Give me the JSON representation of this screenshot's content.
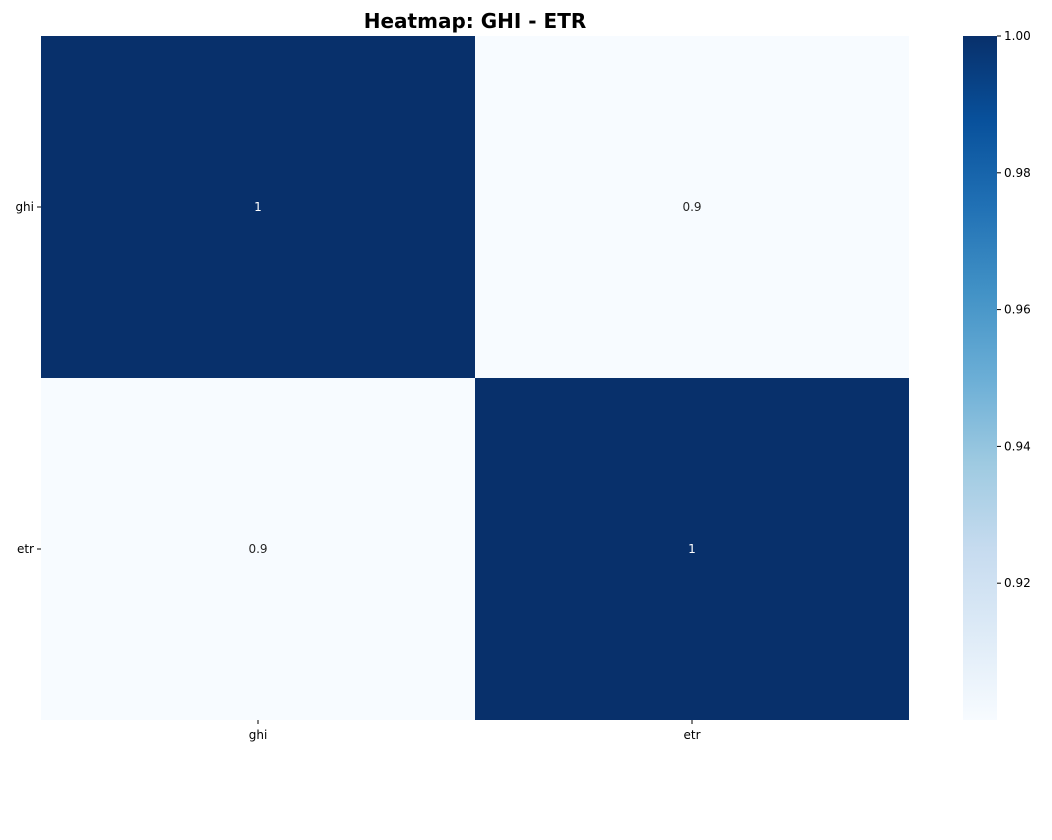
{
  "chart_data": {
    "type": "heatmap",
    "title": "Heatmap: GHI - ETR",
    "x_categories": [
      "ghi",
      "etr"
    ],
    "y_categories": [
      "ghi",
      "etr"
    ],
    "values": [
      [
        1.0,
        0.9
      ],
      [
        0.9,
        1.0
      ]
    ],
    "cell_labels": [
      [
        "1",
        "0.9"
      ],
      [
        "0.9",
        "1"
      ]
    ],
    "colorbar": {
      "range": [
        0.9,
        1.0
      ],
      "ticks": [
        0.92,
        0.94,
        0.96,
        0.98,
        1.0
      ],
      "tick_labels": [
        "0.92",
        "0.94",
        "0.96",
        "0.98",
        "1.00"
      ],
      "colormap": "Blues",
      "low_color": "#f7fbff",
      "high_color": "#08306b"
    },
    "grid": false
  }
}
